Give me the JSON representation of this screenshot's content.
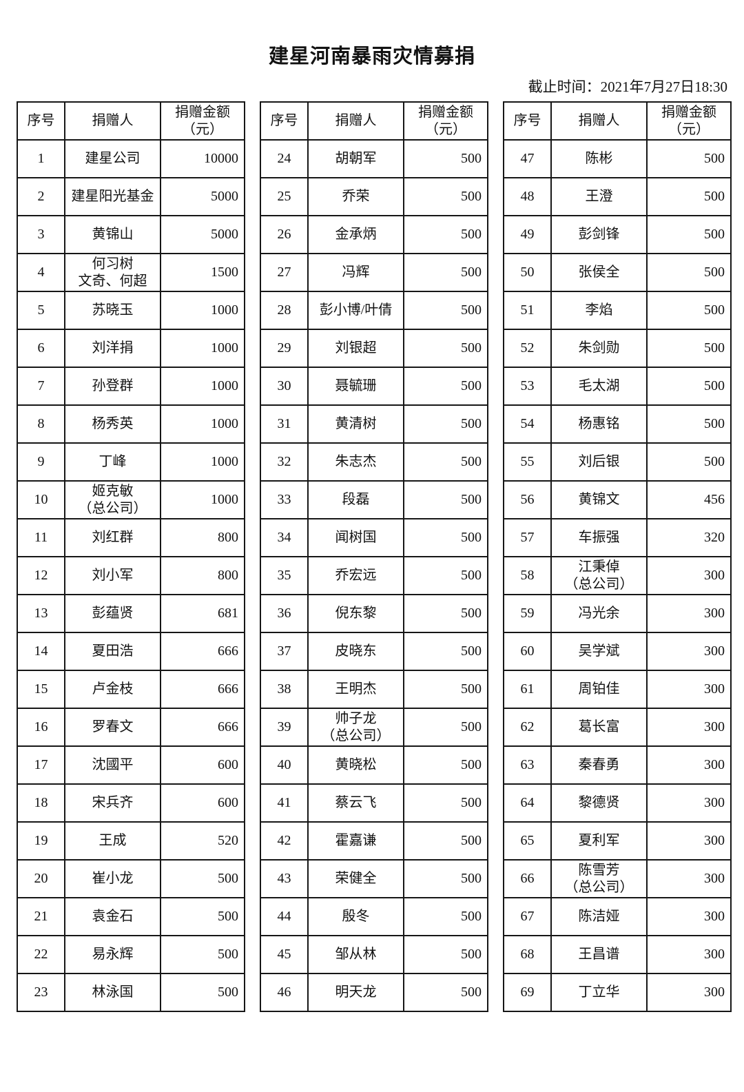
{
  "title": "建星河南暴雨灾情募捐",
  "deadline": "截止时间：2021年7月27日18:30",
  "headers": {
    "no": "序号",
    "donor": "捐赠人",
    "amount": "捐赠金额\n（元）"
  },
  "tables": [
    {
      "rows": [
        {
          "no": "1",
          "donor": "建星公司",
          "amount": "10000"
        },
        {
          "no": "2",
          "donor": "建星阳光基金",
          "amount": "5000"
        },
        {
          "no": "3",
          "donor": "黄锦山",
          "amount": "5000"
        },
        {
          "no": "4",
          "donor": "何习树\n文奇、何超",
          "amount": "1500"
        },
        {
          "no": "5",
          "donor": "苏晓玉",
          "amount": "1000"
        },
        {
          "no": "6",
          "donor": "刘洋捐",
          "amount": "1000"
        },
        {
          "no": "7",
          "donor": "孙登群",
          "amount": "1000"
        },
        {
          "no": "8",
          "donor": "杨秀英",
          "amount": "1000"
        },
        {
          "no": "9",
          "donor": "丁峰",
          "amount": "1000"
        },
        {
          "no": "10",
          "donor": "姬克敏\n（总公司）",
          "amount": "1000"
        },
        {
          "no": "11",
          "donor": "刘红群",
          "amount": "800"
        },
        {
          "no": "12",
          "donor": "刘小军",
          "amount": "800"
        },
        {
          "no": "13",
          "donor": "彭蕴贤",
          "amount": "681"
        },
        {
          "no": "14",
          "donor": "夏田浩",
          "amount": "666"
        },
        {
          "no": "15",
          "donor": "卢金枝",
          "amount": "666"
        },
        {
          "no": "16",
          "donor": "罗春文",
          "amount": "666"
        },
        {
          "no": "17",
          "donor": "沈國平",
          "amount": "600"
        },
        {
          "no": "18",
          "donor": "宋兵齐",
          "amount": "600"
        },
        {
          "no": "19",
          "donor": "王成",
          "amount": "520"
        },
        {
          "no": "20",
          "donor": "崔小龙",
          "amount": "500"
        },
        {
          "no": "21",
          "donor": "袁金石",
          "amount": "500"
        },
        {
          "no": "22",
          "donor": "易永辉",
          "amount": "500"
        },
        {
          "no": "23",
          "donor": "林泳国",
          "amount": "500"
        }
      ]
    },
    {
      "rows": [
        {
          "no": "24",
          "donor": "胡朝军",
          "amount": "500"
        },
        {
          "no": "25",
          "donor": "乔荣",
          "amount": "500"
        },
        {
          "no": "26",
          "donor": "金承炳",
          "amount": "500"
        },
        {
          "no": "27",
          "donor": "冯辉",
          "amount": "500"
        },
        {
          "no": "28",
          "donor": "彭小博/叶倩",
          "amount": "500"
        },
        {
          "no": "29",
          "donor": "刘银超",
          "amount": "500"
        },
        {
          "no": "30",
          "donor": "聂毓珊",
          "amount": "500"
        },
        {
          "no": "31",
          "donor": "黄清树",
          "amount": "500"
        },
        {
          "no": "32",
          "donor": "朱志杰",
          "amount": "500"
        },
        {
          "no": "33",
          "donor": "段磊",
          "amount": "500"
        },
        {
          "no": "34",
          "donor": "闻树国",
          "amount": "500"
        },
        {
          "no": "35",
          "donor": "乔宏远",
          "amount": "500"
        },
        {
          "no": "36",
          "donor": "倪东黎",
          "amount": "500"
        },
        {
          "no": "37",
          "donor": "皮晓东",
          "amount": "500"
        },
        {
          "no": "38",
          "donor": "王明杰",
          "amount": "500"
        },
        {
          "no": "39",
          "donor": "帅子龙\n（总公司）",
          "amount": "500"
        },
        {
          "no": "40",
          "donor": "黄晓松",
          "amount": "500"
        },
        {
          "no": "41",
          "donor": "蔡云飞",
          "amount": "500"
        },
        {
          "no": "42",
          "donor": "霍嘉谦",
          "amount": "500"
        },
        {
          "no": "43",
          "donor": "荣健全",
          "amount": "500"
        },
        {
          "no": "44",
          "donor": "殷冬",
          "amount": "500"
        },
        {
          "no": "45",
          "donor": "邹从林",
          "amount": "500"
        },
        {
          "no": "46",
          "donor": "明天龙",
          "amount": "500"
        }
      ]
    },
    {
      "rows": [
        {
          "no": "47",
          "donor": "陈彬",
          "amount": "500"
        },
        {
          "no": "48",
          "donor": "王澄",
          "amount": "500"
        },
        {
          "no": "49",
          "donor": "彭剑锋",
          "amount": "500"
        },
        {
          "no": "50",
          "donor": "张侯全",
          "amount": "500"
        },
        {
          "no": "51",
          "donor": "李焰",
          "amount": "500"
        },
        {
          "no": "52",
          "donor": "朱剑勋",
          "amount": "500"
        },
        {
          "no": "53",
          "donor": "毛太湖",
          "amount": "500"
        },
        {
          "no": "54",
          "donor": "杨惠铭",
          "amount": "500"
        },
        {
          "no": "55",
          "donor": "刘后银",
          "amount": "500"
        },
        {
          "no": "56",
          "donor": "黄锦文",
          "amount": "456"
        },
        {
          "no": "57",
          "donor": "车振强",
          "amount": "320"
        },
        {
          "no": "58",
          "donor": "江秉倬\n（总公司）",
          "amount": "300"
        },
        {
          "no": "59",
          "donor": "冯光余",
          "amount": "300"
        },
        {
          "no": "60",
          "donor": "吴学斌",
          "amount": "300"
        },
        {
          "no": "61",
          "donor": "周铂佳",
          "amount": "300"
        },
        {
          "no": "62",
          "donor": "葛长富",
          "amount": "300"
        },
        {
          "no": "63",
          "donor": "秦春勇",
          "amount": "300"
        },
        {
          "no": "64",
          "donor": "黎德贤",
          "amount": "300"
        },
        {
          "no": "65",
          "donor": "夏利军",
          "amount": "300"
        },
        {
          "no": "66",
          "donor": "陈雪芳\n（总公司）",
          "amount": "300"
        },
        {
          "no": "67",
          "donor": "陈洁娅",
          "amount": "300"
        },
        {
          "no": "68",
          "donor": "王昌谱",
          "amount": "300"
        },
        {
          "no": "69",
          "donor": "丁立华",
          "amount": "300"
        }
      ]
    }
  ]
}
